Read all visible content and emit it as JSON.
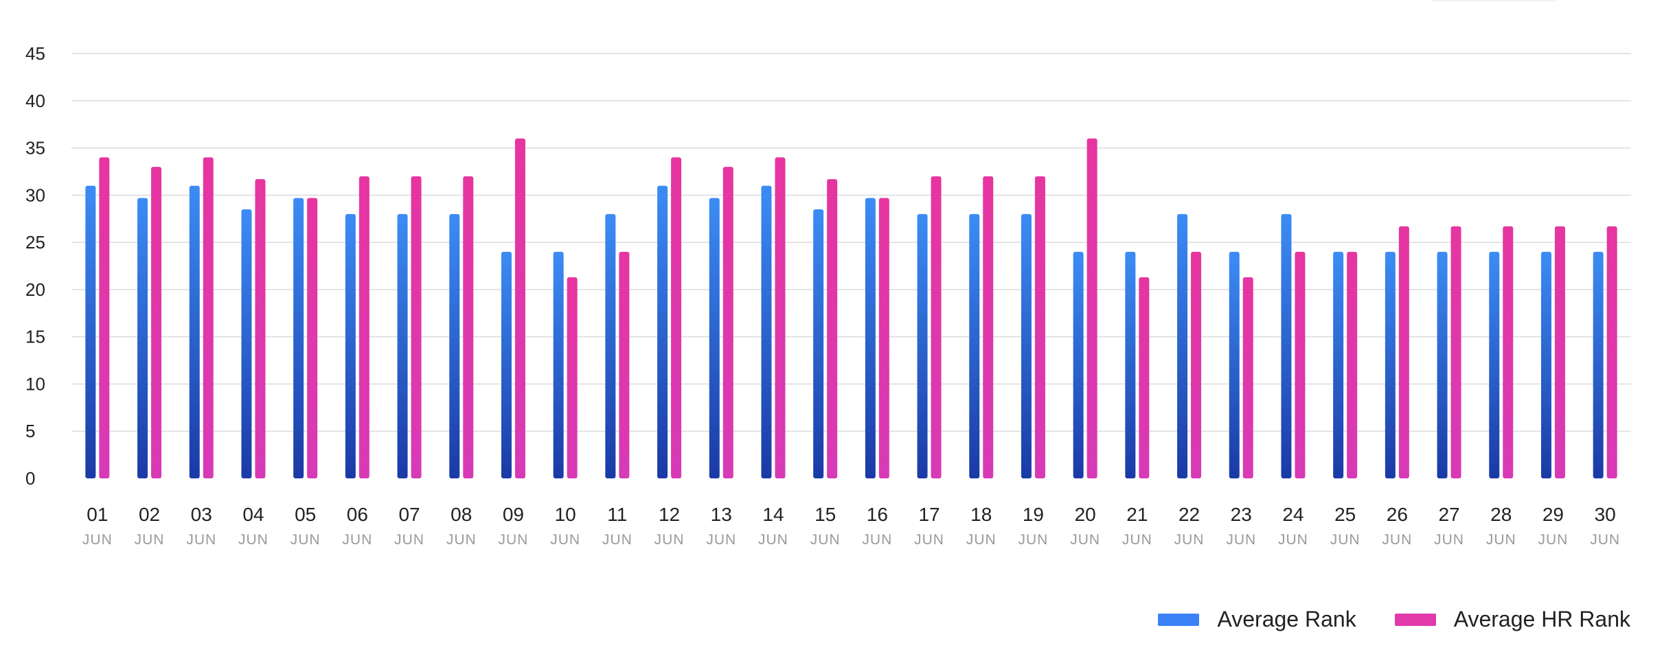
{
  "chart_data": {
    "type": "bar",
    "categories": [
      "01",
      "02",
      "03",
      "04",
      "05",
      "06",
      "07",
      "08",
      "09",
      "10",
      "11",
      "12",
      "13",
      "14",
      "15",
      "16",
      "17",
      "18",
      "19",
      "20",
      "21",
      "22",
      "23",
      "24",
      "25",
      "26",
      "27",
      "28",
      "29",
      "30"
    ],
    "category_sublabel": "JUN",
    "series": [
      {
        "name": "Average Rank",
        "color": "#3b82f6",
        "values": [
          31,
          29.7,
          31,
          28.5,
          29.7,
          28,
          28,
          28,
          24,
          24,
          28,
          31,
          29.7,
          31,
          28.5,
          29.7,
          28,
          28,
          28,
          24,
          24,
          28,
          24,
          28,
          24,
          24,
          24,
          24,
          24,
          24
        ]
      },
      {
        "name": "Average HR Rank",
        "color": "#e23aa8",
        "values": [
          34,
          33,
          34,
          31.7,
          29.7,
          32,
          32,
          32,
          36,
          21.3,
          24,
          34,
          33,
          34,
          31.7,
          29.7,
          32,
          32,
          32,
          36,
          21.3,
          24,
          21.3,
          24,
          24,
          26.7,
          26.7,
          26.7,
          26.7,
          26.7
        ]
      }
    ],
    "ylim": [
      0,
      45
    ],
    "yticks": [
      0,
      5,
      10,
      15,
      20,
      25,
      30,
      35,
      40,
      45
    ],
    "xlabel": "",
    "ylabel": "",
    "grid": true,
    "legend_position": "bottom-right"
  }
}
